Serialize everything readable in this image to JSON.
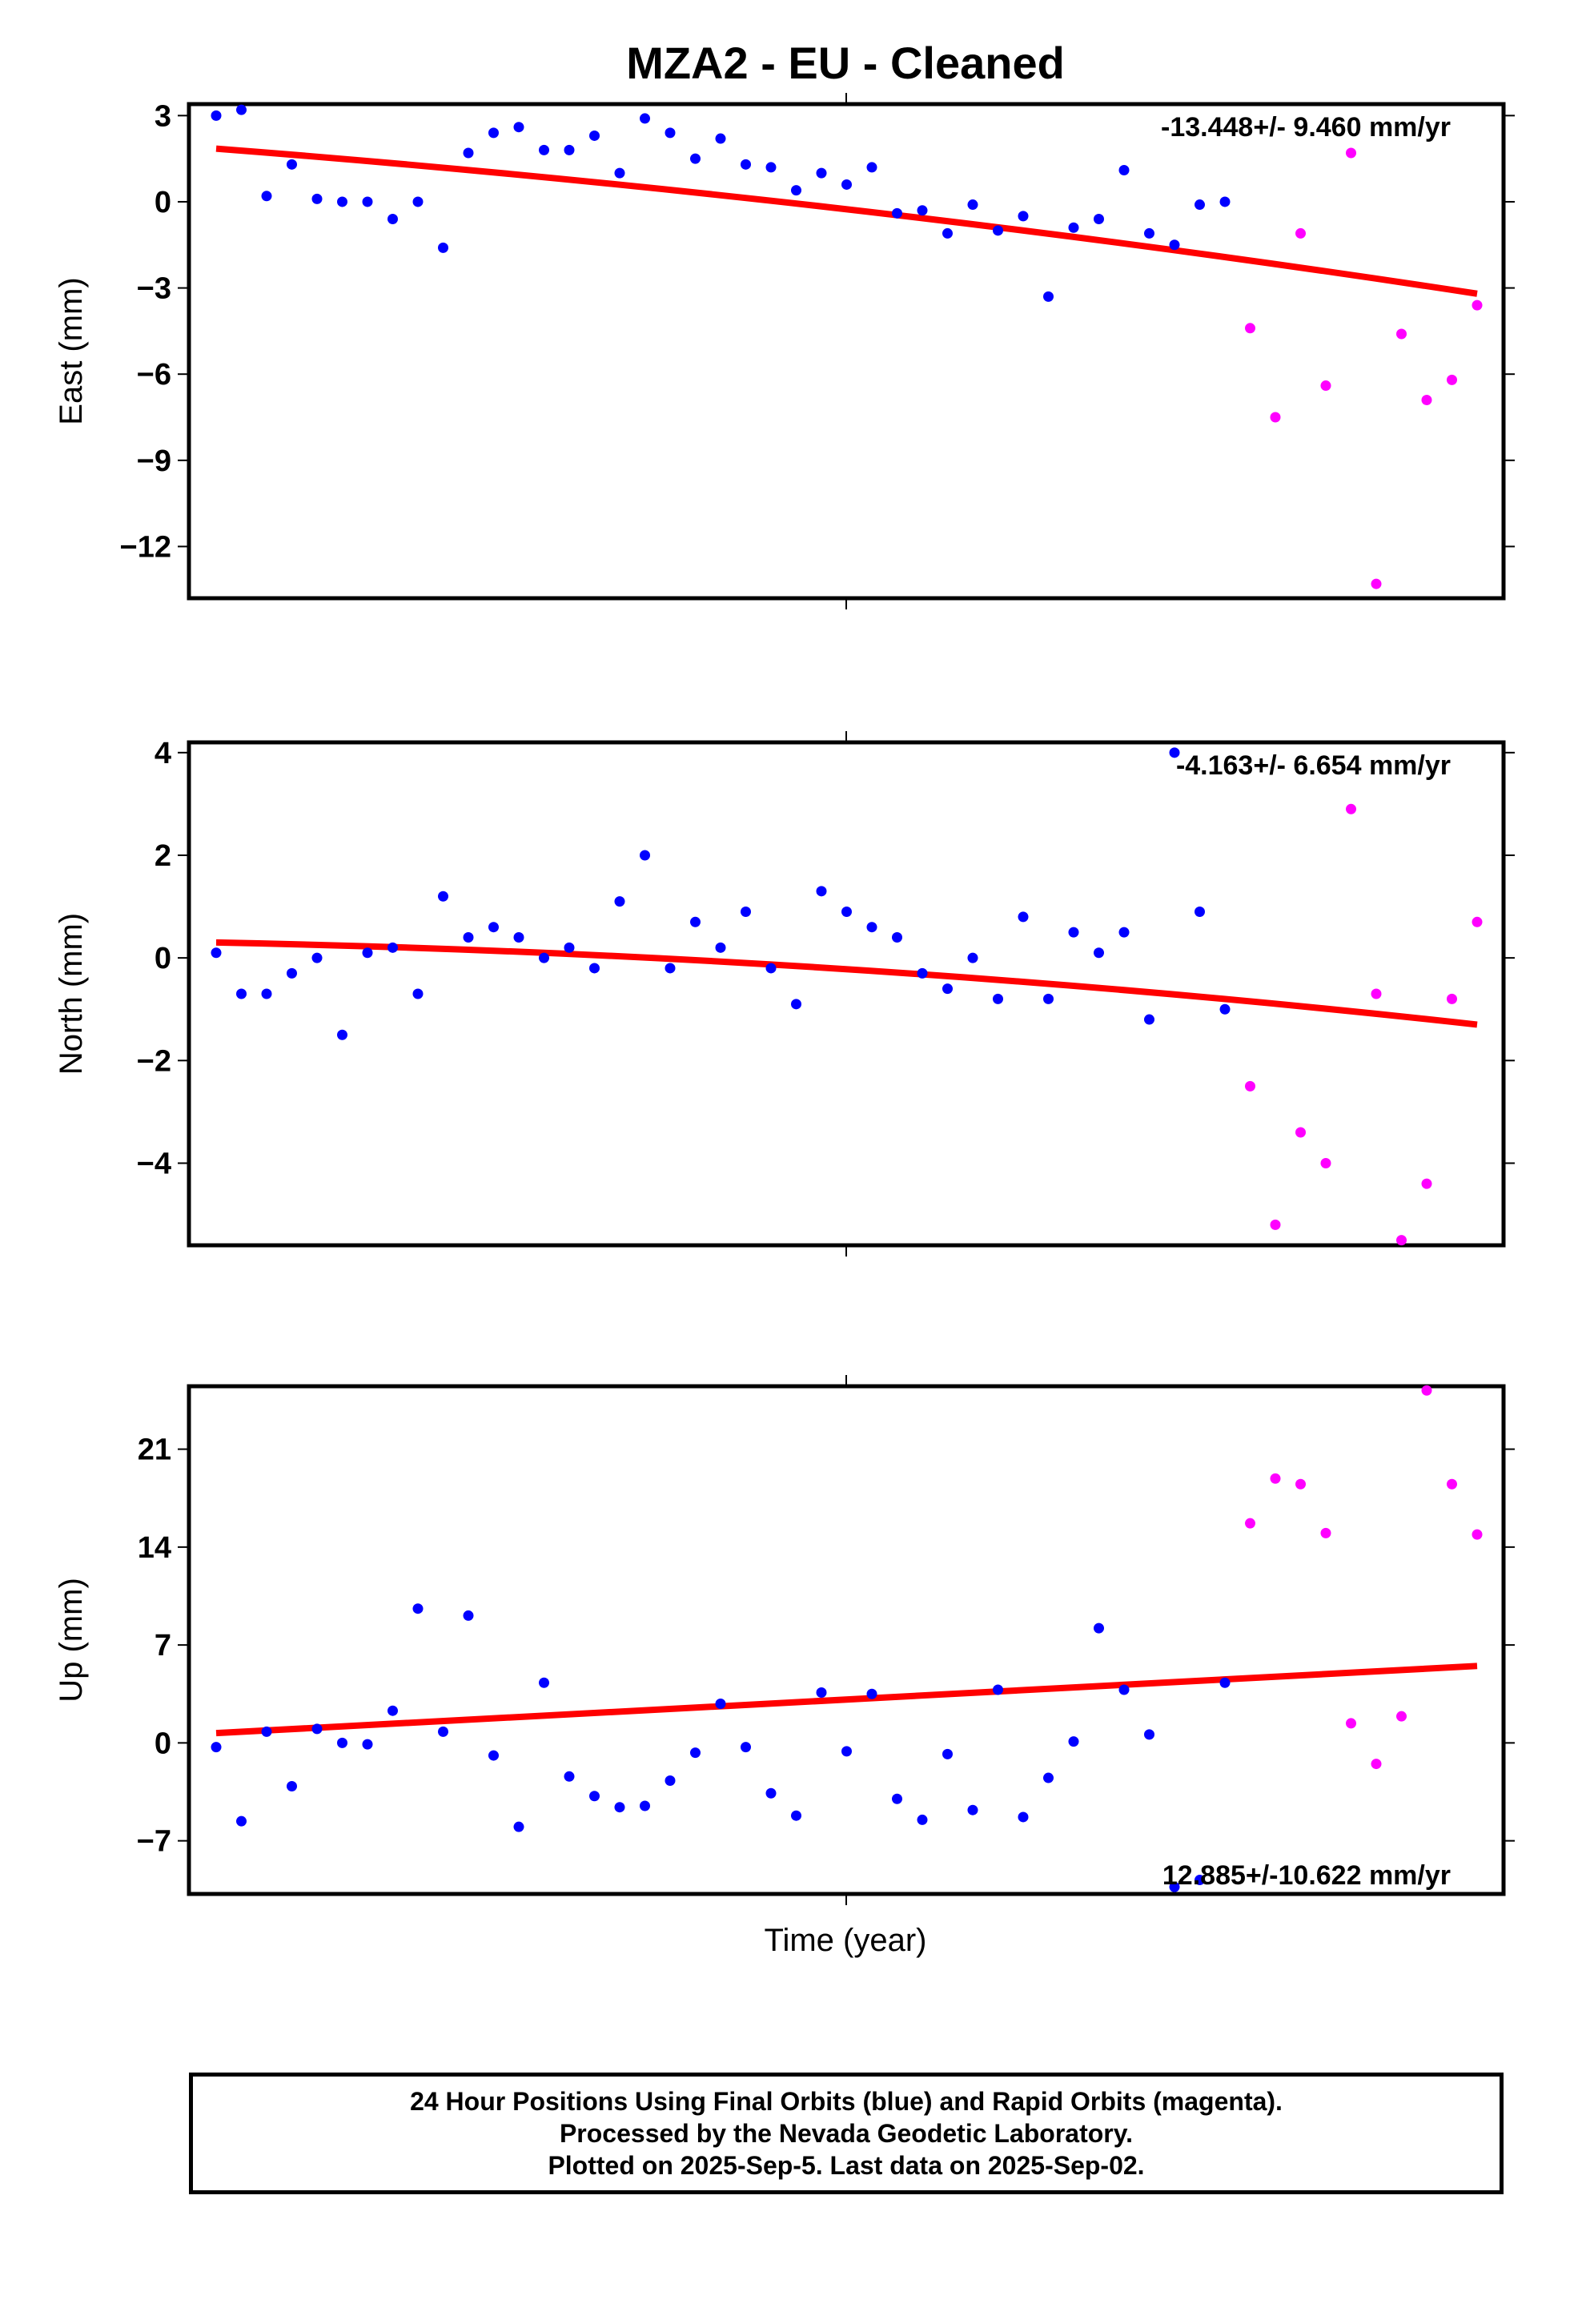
{
  "figure": {
    "title": "MZA2  - EU - Cleaned",
    "xlabel": "Time (year)",
    "colors": {
      "final": "#0000ff",
      "rapid": "#ff00ff",
      "trend": "#ff0000",
      "frame": "#000000"
    }
  },
  "chart_data": [
    {
      "type": "scatter",
      "panel": "east",
      "ylabel": "East (mm)",
      "ylim": [
        -13.8,
        3.4
      ],
      "yticks": [
        3,
        0,
        -3,
        -6,
        -9,
        -12
      ],
      "ytick_labels": [
        "3",
        "0",
        "−3",
        "−6",
        "−9",
        "−12"
      ],
      "rate_label": "-13.448+/- 9.460 mm/yr",
      "rate_position": "top-right",
      "trend": {
        "start": 1.85,
        "mid": -0.26,
        "end": -3.2
      },
      "series": [
        {
          "orbit": "final",
          "color": "#0000ff",
          "values": [
            3.0,
            3.2,
            0.2,
            1.3,
            0.1,
            0.0,
            0.0,
            -0.6,
            0.0,
            -1.6,
            1.7,
            2.4,
            2.6,
            1.8,
            1.8,
            2.3,
            1.0,
            2.9,
            2.4,
            1.5,
            2.2,
            1.3,
            1.2,
            0.4,
            1.0,
            0.6,
            1.2,
            -0.4,
            -0.3,
            -1.1,
            -0.1,
            -1.0,
            -0.5,
            -3.3,
            -0.9,
            -0.6,
            1.1,
            -1.1,
            -1.5,
            -0.1,
            0.0
          ]
        },
        {
          "orbit": "rapid",
          "color": "#ff00ff",
          "values": [
            -4.4,
            -7.5,
            -1.1,
            -6.4,
            1.7,
            -13.3,
            -4.6,
            -6.9,
            -6.2,
            -3.6
          ]
        }
      ]
    },
    {
      "type": "scatter",
      "panel": "north",
      "ylabel": "North (mm)",
      "ylim": [
        -5.6,
        4.2
      ],
      "yticks": [
        4,
        2,
        0,
        -2,
        -4
      ],
      "ytick_labels": [
        "4",
        "2",
        "0",
        "−2",
        "−4"
      ],
      "rate_label": "-4.163+/- 6.654 mm/yr",
      "rate_position": "top-right",
      "trend": {
        "start": 0.3,
        "mid": -0.22,
        "end": -1.3
      },
      "series": [
        {
          "orbit": "final",
          "color": "#0000ff",
          "values": [
            0.1,
            -0.7,
            -0.7,
            -0.3,
            0.0,
            -1.5,
            0.1,
            0.2,
            -0.7,
            1.2,
            0.4,
            0.6,
            0.4,
            0.0,
            0.2,
            -0.2,
            1.1,
            2.0,
            -0.2,
            0.7,
            0.2,
            0.9,
            -0.2,
            -0.9,
            1.3,
            0.9,
            0.6,
            0.4,
            -0.3,
            -0.6,
            0.0,
            -0.8,
            0.8,
            -0.8,
            0.5,
            0.1,
            0.5,
            -1.2,
            4.0,
            0.9,
            -1.0
          ]
        },
        {
          "orbit": "rapid",
          "color": "#ff00ff",
          "values": [
            -2.5,
            -5.2,
            -3.4,
            -4.0,
            2.9,
            -0.7,
            -5.5,
            -4.4,
            -0.8,
            0.7
          ]
        }
      ]
    },
    {
      "type": "scatter",
      "panel": "up",
      "ylabel": "Up (mm)",
      "ylim": [
        -10.8,
        25.5
      ],
      "yticks": [
        21,
        14,
        7,
        0,
        -7
      ],
      "ytick_labels": [
        "21",
        "14",
        "7",
        "0",
        "−7"
      ],
      "rate_label": "12.885+/-10.622 mm/yr",
      "rate_position": "bottom-right",
      "trend": {
        "start": 0.7,
        "mid": 3.0,
        "end": 5.5
      },
      "series": [
        {
          "orbit": "final",
          "color": "#0000ff",
          "values": [
            -0.3,
            -5.6,
            0.8,
            -3.1,
            1.0,
            0.0,
            -0.1,
            2.3,
            9.6,
            0.8,
            9.1,
            -0.9,
            -6.0,
            4.3,
            -2.4,
            -3.8,
            -4.6,
            -4.5,
            -2.7,
            -0.7,
            2.8,
            -0.3,
            -3.6,
            -5.2,
            3.6,
            -0.6,
            3.5,
            -4.0,
            -5.5,
            -0.8,
            -4.8,
            3.8,
            -5.3,
            -2.5,
            0.1,
            8.2,
            3.8,
            0.6,
            -10.3,
            -9.8,
            4.3
          ]
        },
        {
          "orbit": "rapid",
          "color": "#ff00ff",
          "values": [
            15.7,
            18.9,
            18.5,
            15.0,
            1.4,
            -1.5,
            1.9,
            25.2,
            18.5,
            14.9
          ]
        }
      ]
    }
  ],
  "footer": {
    "line1": "24 Hour Positions Using Final Orbits (blue) and Rapid Orbits (magenta).",
    "line2": "Processed by the Nevada Geodetic Laboratory.",
    "line3": "Plotted on 2025-Sep-5. Last data on 2025-Sep-02."
  }
}
